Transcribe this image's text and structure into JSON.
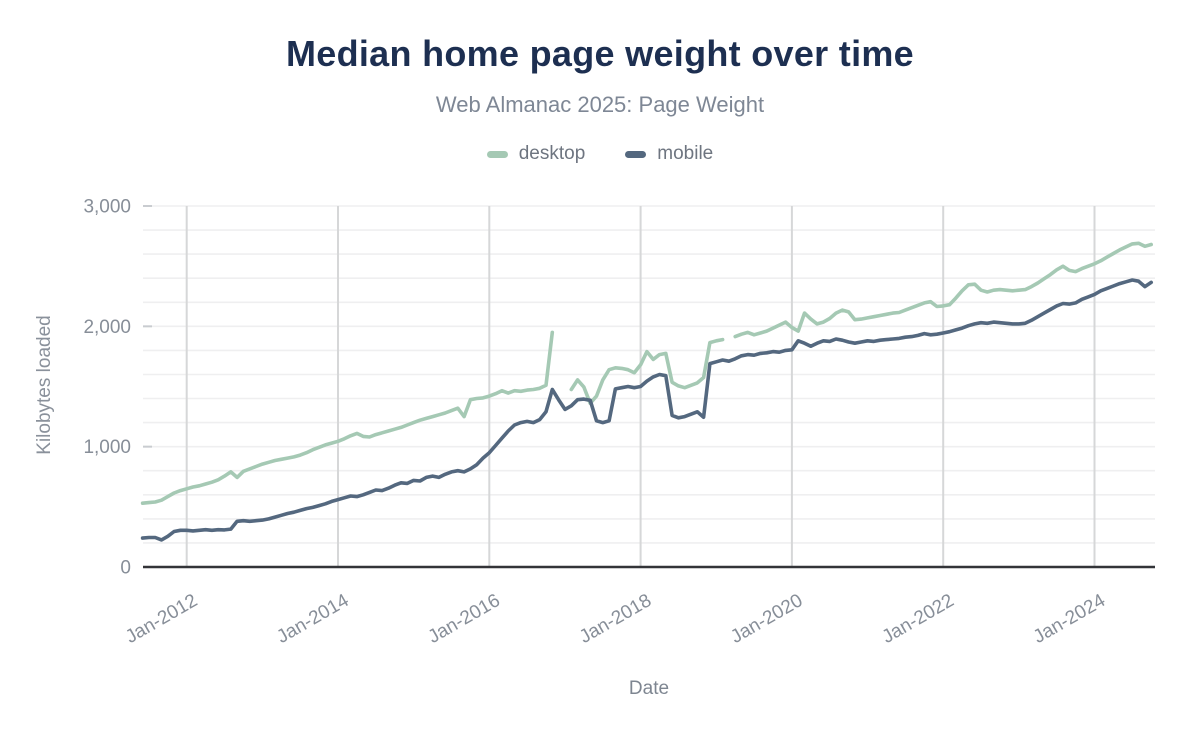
{
  "header": {
    "title": "Median home page weight over time",
    "subtitle": "Web Almanac 2025: Page Weight"
  },
  "chart_data": {
    "type": "line",
    "title": "Median home page weight over time",
    "subtitle": "Web Almanac 2025: Page Weight",
    "xlabel": "Date",
    "ylabel": "Kilobytes loaded",
    "unit": "KB",
    "ylim": [
      0,
      3000
    ],
    "y_minor_grid_step": 200,
    "legend_position": "top",
    "grid": true,
    "yticks": [
      {
        "value": 0,
        "label": "0"
      },
      {
        "value": 1000,
        "label": "1,000"
      },
      {
        "value": 2000,
        "label": "2,000"
      },
      {
        "value": 3000,
        "label": "3,000"
      }
    ],
    "xticks": [
      {
        "label": "Jan-2012",
        "year": 2012
      },
      {
        "label": "Jan-2014",
        "year": 2014
      },
      {
        "label": "Jan-2016",
        "year": 2016
      },
      {
        "label": "Jan-2018",
        "year": 2018
      },
      {
        "label": "Jan-2020",
        "year": 2020
      },
      {
        "label": "Jan-2022",
        "year": 2022
      },
      {
        "label": "Jan-2024",
        "year": 2024
      }
    ],
    "x_start": "2011-06",
    "x_end": "2024-10",
    "x_step_months": 1,
    "series": [
      {
        "name": "desktop",
        "color": "#a5c9b4",
        "values": [
          530,
          535,
          540,
          555,
          585,
          615,
          635,
          650,
          665,
          675,
          690,
          705,
          725,
          755,
          790,
          745,
          795,
          815,
          835,
          855,
          870,
          885,
          895,
          905,
          915,
          930,
          950,
          975,
          995,
          1015,
          1030,
          1045,
          1065,
          1090,
          1110,
          1085,
          1080,
          1100,
          1115,
          1130,
          1145,
          1160,
          1180,
          1200,
          1220,
          1235,
          1250,
          1265,
          1280,
          1300,
          1320,
          1250,
          1390,
          1400,
          1405,
          1420,
          1440,
          1465,
          1445,
          1465,
          1460,
          1470,
          1475,
          1485,
          1510,
          1950,
          null,
          null,
          1475,
          1555,
          1495,
          1360,
          1420,
          1555,
          1640,
          1655,
          1650,
          1640,
          1615,
          1680,
          1790,
          1725,
          1765,
          1775,
          1535,
          1505,
          1490,
          1510,
          1530,
          1575,
          1865,
          1880,
          1890,
          null,
          1915,
          1935,
          1950,
          1930,
          1945,
          1960,
          1985,
          2010,
          2035,
          1990,
          1960,
          2110,
          2060,
          2020,
          2035,
          2065,
          2110,
          2135,
          2120,
          2055,
          2060,
          2070,
          2080,
          2090,
          2100,
          2110,
          2115,
          2135,
          2155,
          2175,
          2195,
          2205,
          2165,
          2170,
          2180,
          2235,
          2295,
          2345,
          2350,
          2300,
          2285,
          2300,
          2305,
          2300,
          2295,
          2300,
          2305,
          2330,
          2360,
          2395,
          2430,
          2470,
          2500,
          2465,
          2455,
          2480,
          2500,
          2520,
          2545,
          2575,
          2605,
          2635,
          2660,
          2685,
          2690,
          2665,
          2680
        ]
      },
      {
        "name": "mobile",
        "color": "#54687f",
        "values": [
          240,
          245,
          245,
          225,
          255,
          295,
          305,
          305,
          300,
          305,
          310,
          305,
          310,
          308,
          315,
          380,
          385,
          380,
          385,
          390,
          400,
          415,
          430,
          445,
          455,
          470,
          485,
          495,
          510,
          525,
          545,
          560,
          575,
          590,
          585,
          600,
          620,
          640,
          635,
          655,
          680,
          700,
          695,
          720,
          715,
          745,
          755,
          745,
          770,
          790,
          800,
          790,
          815,
          850,
          905,
          950,
          1010,
          1070,
          1130,
          1180,
          1200,
          1210,
          1200,
          1225,
          1290,
          1475,
          1390,
          1310,
          1340,
          1390,
          1395,
          1385,
          1215,
          1200,
          1215,
          1480,
          1490,
          1500,
          1490,
          1500,
          1545,
          1580,
          1600,
          1590,
          1260,
          1240,
          1250,
          1270,
          1290,
          1245,
          1690,
          1705,
          1720,
          1710,
          1730,
          1755,
          1765,
          1760,
          1775,
          1780,
          1790,
          1785,
          1800,
          1805,
          1880,
          1860,
          1835,
          1860,
          1880,
          1875,
          1895,
          1885,
          1870,
          1860,
          1870,
          1880,
          1875,
          1885,
          1890,
          1895,
          1900,
          1910,
          1915,
          1925,
          1940,
          1930,
          1935,
          1945,
          1955,
          1970,
          1985,
          2005,
          2020,
          2030,
          2025,
          2035,
          2030,
          2025,
          2020,
          2020,
          2025,
          2050,
          2080,
          2110,
          2140,
          2170,
          2190,
          2185,
          2195,
          2225,
          2245,
          2265,
          2295,
          2315,
          2335,
          2355,
          2370,
          2385,
          2375,
          2330,
          2365
        ]
      }
    ]
  }
}
